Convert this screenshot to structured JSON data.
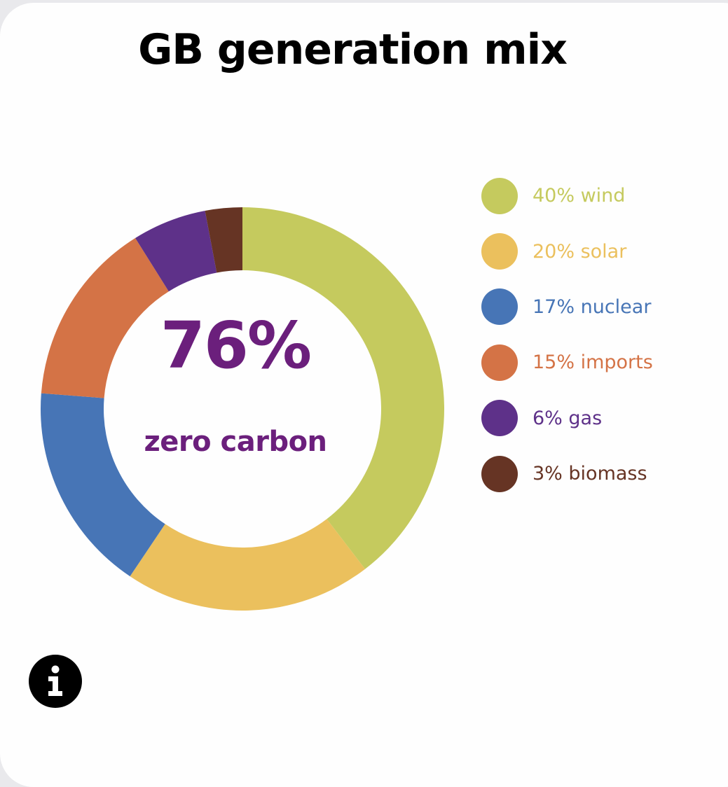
{
  "chart_data": {
    "type": "pie",
    "title": "GB generation mix",
    "center_value": "76%",
    "center_label": "zero carbon",
    "legend_position": "right",
    "slices": [
      {
        "label": "wind",
        "value": 40,
        "legend": "40% wind",
        "color": "#c5ca5e"
      },
      {
        "label": "solar",
        "value": 20,
        "legend": "20% solar",
        "color": "#ebc05d"
      },
      {
        "label": "nuclear",
        "value": 17,
        "legend": "17% nuclear",
        "color": "#4775b6"
      },
      {
        "label": "imports",
        "value": 15,
        "legend": "15% imports",
        "color": "#d47346"
      },
      {
        "label": "gas",
        "value": 6,
        "legend": "6% gas",
        "color": "#5e3189"
      },
      {
        "label": "biomass",
        "value": 3,
        "legend": "3% biomass",
        "color": "#663424"
      }
    ]
  },
  "icons": {
    "info": "info-icon"
  }
}
